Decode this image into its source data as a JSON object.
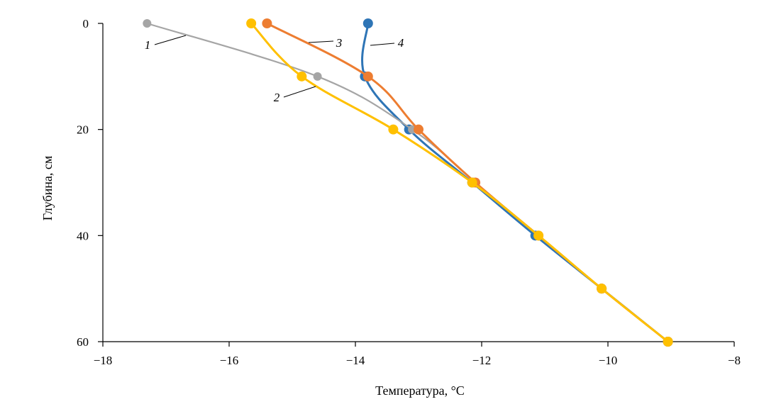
{
  "chart_data": {
    "type": "line",
    "xlabel": "Температура, °С",
    "ylabel": "Глубина, см",
    "xlim": [
      -18,
      -8
    ],
    "ylim": [
      0,
      60
    ],
    "y_inverted": true,
    "xticks": [
      -18,
      -16,
      -14,
      -12,
      -10,
      -8
    ],
    "yticks": [
      0,
      20,
      40,
      60
    ],
    "xtick_labels": [
      "−18",
      "−16",
      "−14",
      "−12",
      "−10",
      "−8"
    ],
    "ytick_labels": [
      "0",
      "20",
      "40",
      "60"
    ],
    "grid": false,
    "series": [
      {
        "name": "1",
        "color": "#a5a5a5",
        "points": [
          [
            -17.3,
            0
          ],
          [
            -14.6,
            10
          ],
          [
            -13.1,
            20
          ],
          [
            -12.1,
            30
          ],
          [
            -11.1,
            40
          ],
          [
            -10.1,
            50
          ],
          [
            -9.05,
            60
          ]
        ]
      },
      {
        "name": "2",
        "color": "#ffc000",
        "points": [
          [
            -15.65,
            0
          ],
          [
            -14.85,
            10
          ],
          [
            -13.4,
            20
          ],
          [
            -12.15,
            30
          ],
          [
            -11.1,
            40
          ],
          [
            -10.1,
            50
          ],
          [
            -9.05,
            60
          ]
        ]
      },
      {
        "name": "3",
        "color": "#ed7d31",
        "points": [
          [
            -15.4,
            0
          ],
          [
            -13.8,
            10
          ],
          [
            -13.0,
            20
          ],
          [
            -12.1,
            30
          ],
          [
            -11.1,
            40
          ],
          [
            -10.1,
            50
          ],
          [
            -9.05,
            60
          ]
        ]
      },
      {
        "name": "4",
        "color": "#2e75b6",
        "points": [
          [
            -13.8,
            0
          ],
          [
            -13.85,
            10
          ],
          [
            -13.15,
            20
          ],
          [
            -12.15,
            30
          ],
          [
            -11.15,
            40
          ],
          [
            -10.1,
            50
          ],
          [
            -9.05,
            60
          ]
        ]
      }
    ],
    "annotations": [
      {
        "text": "1",
        "series": "1"
      },
      {
        "text": "2",
        "series": "2"
      },
      {
        "text": "3",
        "series": "3"
      },
      {
        "text": "4",
        "series": "4"
      }
    ]
  }
}
